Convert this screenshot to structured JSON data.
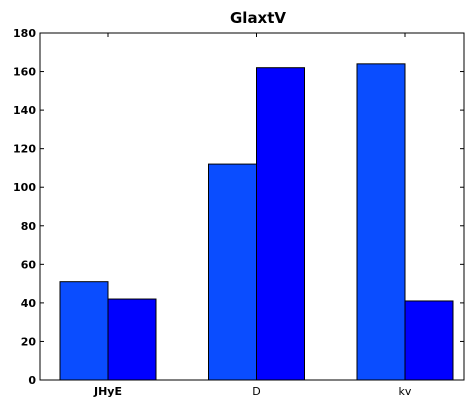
{
  "chart_data": {
    "type": "bar",
    "title": "GlaxtV",
    "xlabel": "",
    "ylabel": "",
    "categories": [
      "JHyE",
      "D",
      "kv"
    ],
    "series": [
      {
        "values": [
          51,
          112,
          164
        ],
        "color": "#0a4dff"
      },
      {
        "values": [
          42,
          162,
          41
        ],
        "color": "#0000ff"
      }
    ],
    "ylim": [
      0,
      180
    ],
    "yticks": [
      0,
      20,
      40,
      60,
      80,
      100,
      120,
      140,
      160,
      180
    ],
    "grid": false,
    "legend": "none",
    "bar_edge_color": "#000000",
    "axis_color": "#000000"
  }
}
